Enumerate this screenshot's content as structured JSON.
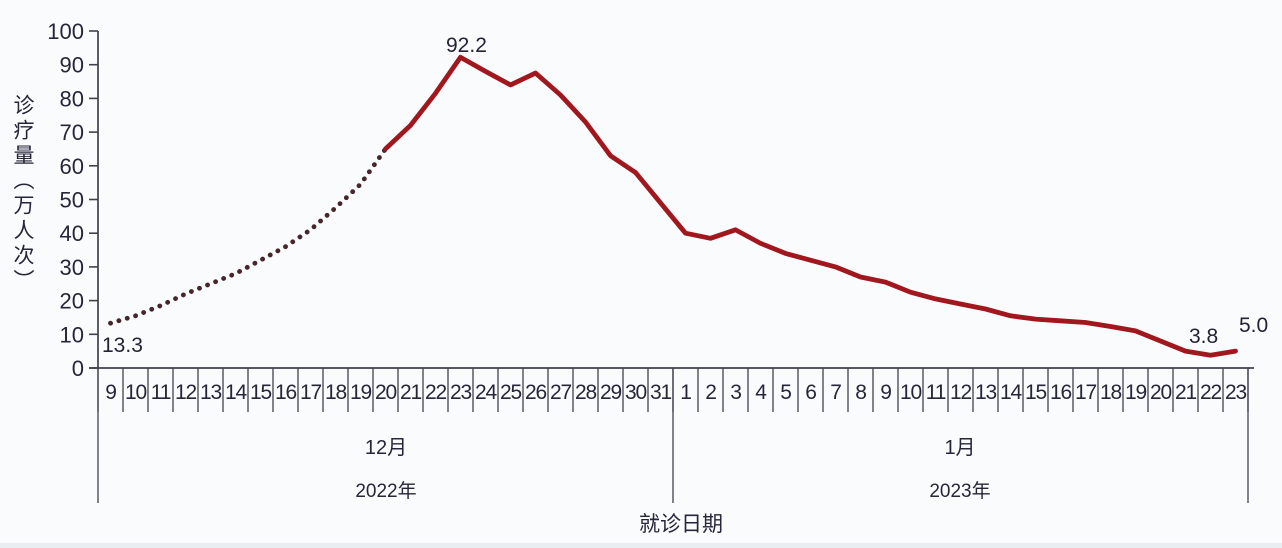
{
  "page": {
    "background_color": "#fafbfd",
    "bottom_strip_color": "#e9eef3",
    "text_color": "#26263a",
    "axis_color": "#41414d"
  },
  "chart_data": {
    "type": "line",
    "title": "",
    "ylabel": "诊疗量（万人次）",
    "xlabel": "就诊日期",
    "ylim": [
      0,
      100
    ],
    "y_ticks": [
      0,
      10,
      20,
      30,
      40,
      50,
      60,
      70,
      80,
      90,
      100
    ],
    "grid": false,
    "legend": "none",
    "x_categories": [
      "9",
      "10",
      "11",
      "12",
      "13",
      "14",
      "15",
      "16",
      "17",
      "18",
      "19",
      "20",
      "21",
      "22",
      "23",
      "24",
      "25",
      "26",
      "27",
      "28",
      "29",
      "30",
      "31",
      "1",
      "2",
      "3",
      "4",
      "5",
      "6",
      "7",
      "8",
      "9",
      "10",
      "11",
      "12",
      "13",
      "14",
      "15",
      "16",
      "17",
      "18",
      "19",
      "20",
      "21",
      "22",
      "23"
    ],
    "month_groups": [
      {
        "month": "12月",
        "year": "2022年",
        "day_count": 23
      },
      {
        "month": "1月",
        "year": "2023年",
        "day_count": 23
      }
    ],
    "series": [
      {
        "name": "诊疗量",
        "values": [
          13.3,
          15.5,
          18.5,
          22,
          25,
          28,
          32,
          36,
          41,
          47.5,
          54.5,
          65,
          72,
          81.5,
          92.2,
          88,
          84,
          87.5,
          81,
          73,
          63,
          58,
          49,
          40,
          38.5,
          41,
          37,
          34,
          32,
          30,
          27,
          25.5,
          22.5,
          20.5,
          19,
          17.5,
          15.5,
          14.5,
          14,
          13.5,
          12.3,
          11,
          8,
          5,
          3.8,
          5.0
        ]
      }
    ],
    "dotted_until_index": 11,
    "line_style_note": "dotted from Dec 9 to Dec 20, solid from Dec 20 to Jan 23",
    "line_color": "#a0181e",
    "dotted_color": "#46262a",
    "annotations": [
      {
        "index": 0,
        "label": "13.3"
      },
      {
        "index": 14,
        "label": "92.2"
      },
      {
        "index": 44,
        "label": "3.8"
      },
      {
        "index": 45,
        "label": "5.0"
      }
    ]
  }
}
